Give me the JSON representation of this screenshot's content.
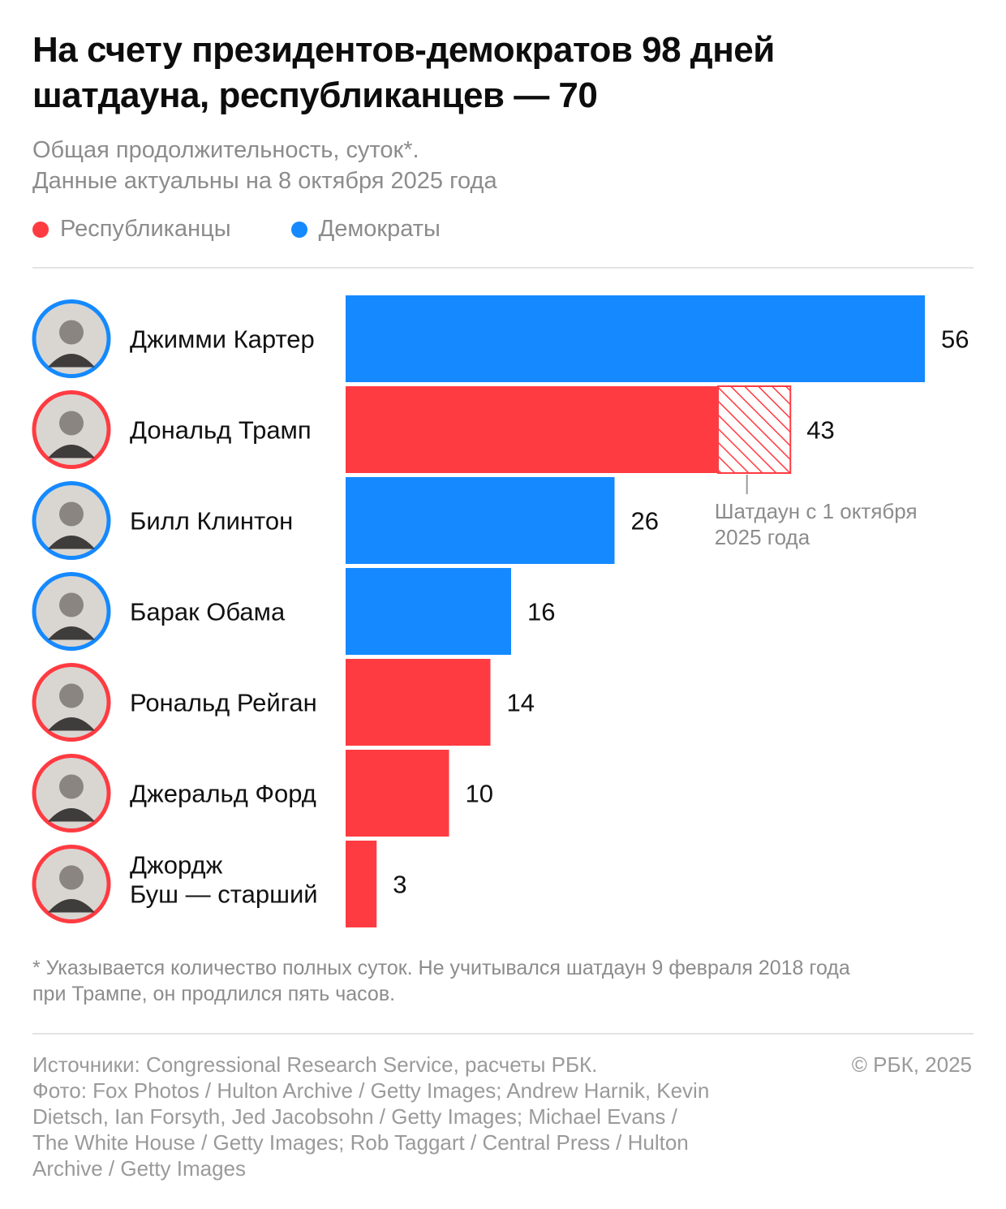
{
  "title": {
    "line1": "На счету президентов-демократов 98 дней",
    "line2": "шатдауна, республиканцев — 70"
  },
  "subtitle": {
    "line1": "Общая продолжительность, суток*.",
    "line2": "Данные актуальны на 8 октября 2025 года"
  },
  "legend": [
    {
      "label": "Республиканцы",
      "color": "#ff3b42"
    },
    {
      "label": "Демократы",
      "color": "#1589ff"
    }
  ],
  "colors": {
    "republican": "#ff3b42",
    "democrat": "#1589ff"
  },
  "chart_data": {
    "type": "bar",
    "orientation": "horizontal",
    "categories": [
      [
        "Джимми Картер"
      ],
      [
        "Дональд Трамп"
      ],
      [
        "Билл Клинтон"
      ],
      [
        "Барак Обама"
      ],
      [
        "Рональд Рейган"
      ],
      [
        "Джеральд Форд"
      ],
      [
        "Джордж",
        "Буш — старший"
      ]
    ],
    "values": [
      56,
      43,
      26,
      16,
      14,
      10,
      3
    ],
    "party": [
      "democrat",
      "republican",
      "democrat",
      "democrat",
      "republican",
      "republican",
      "republican"
    ],
    "hatched_segment": {
      "category_index": 1,
      "from": 36,
      "to": 43
    },
    "annotation": {
      "lines": [
        "Шатдаун с 1 октября",
        "2025 года"
      ]
    },
    "xlim": [
      0,
      56
    ]
  },
  "footnote": {
    "line1": "* Указывается количество полных суток. Не учитывался шатдаун 9 февраля 2018 года",
    "line2": "при Трампе, он продлился пять часов."
  },
  "sources": {
    "line1": "Источники: Congressional Research Service, расчеты РБК.",
    "line2": "Фото: Fox Photos / Hulton Archive / Getty Images; Andrew Harnik, Kevin",
    "line3": "Dietsch, Ian Forsyth, Jed Jacobsohn / Getty Images; Michael Evans /",
    "line4": "The White House / Getty Images; Rob Taggart / Central Press / Hulton",
    "line5": "Archive / Getty Images"
  },
  "copyright": "© РБК, 2025"
}
